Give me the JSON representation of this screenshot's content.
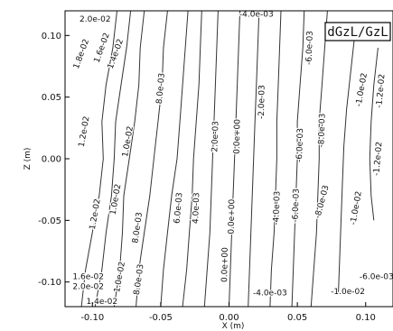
{
  "chart_data": {
    "type": "contour",
    "title": "dGzL/GzL",
    "xlabel": "X (m)",
    "ylabel": "Z (m)",
    "xlim": [
      -0.12,
      0.12
    ],
    "ylim": [
      -0.12,
      0.12
    ],
    "xticks": [
      -0.1,
      -0.05,
      0.0,
      0.05,
      0.1
    ],
    "xtick_labels": [
      "-0.10",
      "-0.05",
      "0.00",
      "0.05",
      "0.10"
    ],
    "yticks": [
      -0.1,
      -0.05,
      0.0,
      0.05,
      0.1
    ],
    "ytick_labels": [
      "-0.10",
      "-0.05",
      "0.00",
      "0.05",
      "0.10"
    ],
    "grid": false,
    "contour_lines": [
      {
        "level": "1.4e-02",
        "points": [
          [
            -0.082,
            0.12
          ],
          [
            -0.085,
            0.09
          ],
          [
            -0.09,
            0.06
          ],
          [
            -0.093,
            0.03
          ],
          [
            -0.092,
            0.0
          ],
          [
            -0.095,
            -0.03
          ],
          [
            -0.1,
            -0.06
          ],
          [
            -0.105,
            -0.09
          ],
          [
            -0.108,
            -0.12
          ]
        ]
      },
      {
        "level": "1.2e-02",
        "points": [
          [
            -0.072,
            0.12
          ],
          [
            -0.075,
            0.09
          ],
          [
            -0.079,
            0.06
          ],
          [
            -0.083,
            0.03
          ],
          [
            -0.084,
            0.0
          ],
          [
            -0.086,
            -0.03
          ],
          [
            -0.09,
            -0.06
          ],
          [
            -0.093,
            -0.09
          ],
          [
            -0.098,
            -0.12
          ]
        ]
      },
      {
        "level": "1.0e-02",
        "points": [
          [
            -0.062,
            0.12
          ],
          [
            -0.065,
            0.09
          ],
          [
            -0.066,
            0.06
          ],
          [
            -0.069,
            0.03
          ],
          [
            -0.073,
            0.0
          ],
          [
            -0.077,
            -0.03
          ],
          [
            -0.078,
            -0.06
          ],
          [
            -0.08,
            -0.09
          ],
          [
            -0.084,
            -0.12
          ]
        ]
      },
      {
        "level": "8.0e-03",
        "points": [
          [
            -0.045,
            0.12
          ],
          [
            -0.048,
            0.09
          ],
          [
            -0.049,
            0.06
          ],
          [
            -0.052,
            0.03
          ],
          [
            -0.055,
            0.0
          ],
          [
            -0.058,
            -0.03
          ],
          [
            -0.062,
            -0.06
          ],
          [
            -0.066,
            -0.09
          ],
          [
            -0.068,
            -0.12
          ]
        ]
      },
      {
        "level": "6.0e-03",
        "points": [
          [
            -0.03,
            0.12
          ],
          [
            -0.032,
            0.09
          ],
          [
            -0.034,
            0.06
          ],
          [
            -0.036,
            0.03
          ],
          [
            -0.038,
            0.0
          ],
          [
            -0.042,
            -0.03
          ],
          [
            -0.045,
            -0.06
          ],
          [
            -0.048,
            -0.09
          ],
          [
            -0.05,
            -0.12
          ]
        ]
      },
      {
        "level": "4.0e-03",
        "points": [
          [
            -0.02,
            0.12
          ],
          [
            -0.021,
            0.09
          ],
          [
            -0.022,
            0.06
          ],
          [
            -0.024,
            0.03
          ],
          [
            -0.026,
            0.0
          ],
          [
            -0.027,
            -0.03
          ],
          [
            -0.029,
            -0.06
          ],
          [
            -0.031,
            -0.09
          ],
          [
            -0.034,
            -0.12
          ]
        ]
      },
      {
        "level": "2.0e-03",
        "points": [
          [
            -0.008,
            0.12
          ],
          [
            -0.009,
            0.09
          ],
          [
            -0.01,
            0.06
          ],
          [
            -0.011,
            0.03
          ],
          [
            -0.012,
            0.0
          ],
          [
            -0.013,
            -0.03
          ],
          [
            -0.014,
            -0.06
          ],
          [
            -0.016,
            -0.09
          ],
          [
            -0.018,
            -0.12
          ]
        ]
      },
      {
        "level": "0.0e+00",
        "points": [
          [
            0.008,
            0.12
          ],
          [
            0.007,
            0.09
          ],
          [
            0.006,
            0.06
          ],
          [
            0.005,
            0.03
          ],
          [
            0.004,
            0.0
          ],
          [
            0.003,
            -0.03
          ],
          [
            0.002,
            -0.06
          ],
          [
            0.001,
            -0.09
          ],
          [
            0.0,
            -0.12
          ]
        ]
      },
      {
        "level": "-2.0e-03",
        "points": [
          [
            0.022,
            0.12
          ],
          [
            0.021,
            0.09
          ],
          [
            0.02,
            0.06
          ],
          [
            0.019,
            0.03
          ],
          [
            0.018,
            0.0
          ],
          [
            0.017,
            -0.03
          ],
          [
            0.016,
            -0.06
          ],
          [
            0.015,
            -0.09
          ],
          [
            0.014,
            -0.12
          ]
        ]
      },
      {
        "level": "-4.0e-03",
        "points": [
          [
            0.038,
            0.12
          ],
          [
            0.037,
            0.09
          ],
          [
            0.036,
            0.06
          ],
          [
            0.035,
            0.03
          ],
          [
            0.035,
            0.0
          ],
          [
            0.034,
            -0.03
          ],
          [
            0.033,
            -0.06
          ],
          [
            0.031,
            -0.09
          ],
          [
            0.03,
            -0.12
          ]
        ]
      },
      {
        "level": "-6.0e-03",
        "points": [
          [
            0.055,
            0.12
          ],
          [
            0.054,
            0.09
          ],
          [
            0.052,
            0.06
          ],
          [
            0.05,
            0.03
          ],
          [
            0.05,
            0.0
          ],
          [
            0.049,
            -0.03
          ],
          [
            0.048,
            -0.06
          ],
          [
            0.047,
            -0.09
          ],
          [
            0.046,
            -0.12
          ]
        ]
      },
      {
        "level": "-8.0e-03",
        "points": [
          [
            0.072,
            0.12
          ],
          [
            0.07,
            0.09
          ],
          [
            0.068,
            0.06
          ],
          [
            0.066,
            0.03
          ],
          [
            0.066,
            0.0
          ],
          [
            0.065,
            -0.03
          ],
          [
            0.064,
            -0.06
          ],
          [
            0.062,
            -0.09
          ],
          [
            0.06,
            -0.12
          ]
        ]
      },
      {
        "level": "-1.0e-02",
        "points": [
          [
            0.092,
            0.1
          ],
          [
            0.089,
            0.07
          ],
          [
            0.086,
            0.04
          ],
          [
            0.084,
            0.01
          ],
          [
            0.083,
            -0.02
          ],
          [
            0.082,
            -0.05
          ],
          [
            0.081,
            -0.08
          ],
          [
            0.08,
            -0.11
          ]
        ]
      },
      {
        "level": "-1.2e-02",
        "points": [
          [
            0.109,
            0.09
          ],
          [
            0.106,
            0.06
          ],
          [
            0.104,
            0.03
          ],
          [
            0.103,
            0.0
          ],
          [
            0.104,
            -0.03
          ],
          [
            0.106,
            -0.05
          ]
        ]
      }
    ],
    "contour_labels": [
      {
        "text": "2.0e-02",
        "x": -0.098,
        "y": 0.113,
        "rotate": 0
      },
      {
        "text": "1.8e-02",
        "x": -0.108,
        "y": 0.085,
        "rotate": -70
      },
      {
        "text": "1.6e-02",
        "x": -0.093,
        "y": 0.09,
        "rotate": -70
      },
      {
        "text": "1.4e-02",
        "x": -0.083,
        "y": 0.085,
        "rotate": -70
      },
      {
        "text": "1.2e-02",
        "x": -0.106,
        "y": 0.022,
        "rotate": -80
      },
      {
        "text": "1.0e-02",
        "x": -0.074,
        "y": 0.014,
        "rotate": -80
      },
      {
        "text": "8.0e-03",
        "x": -0.05,
        "y": 0.057,
        "rotate": -85
      },
      {
        "text": "6.0e-03",
        "x": -0.037,
        "y": -0.04,
        "rotate": -85
      },
      {
        "text": "4.0e-03",
        "x": -0.024,
        "y": -0.04,
        "rotate": -88
      },
      {
        "text": "2.0e-03",
        "x": -0.01,
        "y": 0.018,
        "rotate": -88
      },
      {
        "text": "0.0e+00",
        "x": 0.006,
        "y": 0.018,
        "rotate": -89
      },
      {
        "text": "0.0e+00",
        "x": 0.002,
        "y": -0.047,
        "rotate": -89
      },
      {
        "text": "0.0e+00",
        "x": -0.003,
        "y": -0.086,
        "rotate": -89
      },
      {
        "text": "-2.0e-03",
        "x": 0.024,
        "y": 0.046,
        "rotate": -89
      },
      {
        "text": "-4.0e-03",
        "x": 0.02,
        "y": 0.117,
        "rotate": 0
      },
      {
        "text": "-4.0e-03",
        "x": 0.035,
        "y": -0.04,
        "rotate": -88
      },
      {
        "text": "-4.0e-03",
        "x": 0.03,
        "y": -0.109,
        "rotate": 0
      },
      {
        "text": "-6.0e-03",
        "x": 0.059,
        "y": 0.09,
        "rotate": -88
      },
      {
        "text": "-6.0e-03",
        "x": 0.052,
        "y": 0.011,
        "rotate": -88
      },
      {
        "text": "-6.0e-03",
        "x": 0.049,
        "y": -0.038,
        "rotate": -88
      },
      {
        "text": "-8.0e-03",
        "x": 0.068,
        "y": 0.023,
        "rotate": -88
      },
      {
        "text": "-8.0e-03",
        "x": 0.068,
        "y": -0.035,
        "rotate": -75
      },
      {
        "text": "-1.0e-02",
        "x": 0.097,
        "y": 0.056,
        "rotate": -80
      },
      {
        "text": "-1.2e-02",
        "x": 0.111,
        "y": 0.055,
        "rotate": -85
      },
      {
        "text": "-1.2e-02",
        "x": 0.109,
        "y": 0.0,
        "rotate": -85
      },
      {
        "text": "-1.0e-02",
        "x": 0.093,
        "y": -0.04,
        "rotate": -80
      },
      {
        "text": "-1.0e-02",
        "x": 0.087,
        "y": -0.108,
        "rotate": 0
      },
      {
        "text": "-6.0e-03",
        "x": 0.108,
        "y": -0.096,
        "rotate": 0
      },
      {
        "text": "1.2e-02",
        "x": -0.098,
        "y": -0.045,
        "rotate": -80
      },
      {
        "text": "1.0e-02",
        "x": -0.083,
        "y": -0.033,
        "rotate": -80
      },
      {
        "text": "8.0e-03",
        "x": -0.067,
        "y": -0.056,
        "rotate": -82
      },
      {
        "text": "1.0e-02",
        "x": -0.08,
        "y": -0.096,
        "rotate": -80
      },
      {
        "text": "8.0e-03",
        "x": -0.066,
        "y": -0.098,
        "rotate": -82
      },
      {
        "text": "1.6e-02",
        "x": -0.103,
        "y": -0.096,
        "rotate": 0
      },
      {
        "text": "2.0e-02",
        "x": -0.103,
        "y": -0.104,
        "rotate": 0
      },
      {
        "text": "1.4e-02",
        "x": -0.093,
        "y": -0.116,
        "rotate": 0
      }
    ]
  },
  "colors": {
    "line": "#333333",
    "axis": "#000000",
    "badge_border": "#000000",
    "background": "#ffffff"
  }
}
